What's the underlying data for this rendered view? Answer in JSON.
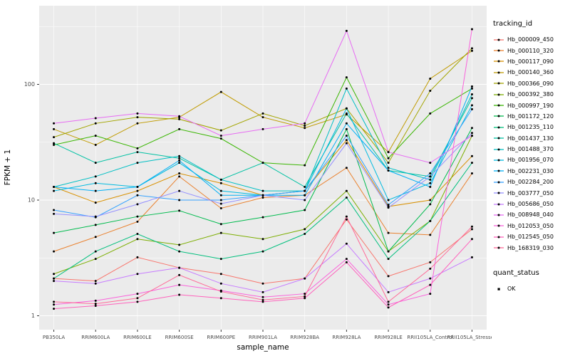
{
  "figure": {
    "background": "#FFFFFF",
    "panel_background": "#EBEBEB",
    "grid_color": "#FFFFFF",
    "tick_text_color": "#4D4D4D",
    "axis_title_color": "#000000",
    "point_color": "#000000"
  },
  "chart_data": {
    "type": "line",
    "title": "",
    "xlabel": "sample_name",
    "ylabel": "FPKM + 1",
    "y_scale": "log10",
    "ylim": [
      1,
      400
    ],
    "yticks": [
      {
        "label": "1",
        "value": 1
      },
      {
        "label": "10",
        "value": 10
      },
      {
        "label": "100",
        "value": 100
      }
    ],
    "grid": true,
    "legend_position": "right",
    "legend_title": "tracking_id",
    "categories": [
      "PB350LA",
      "RRIM600LA",
      "RRIM600LE",
      "RRIM600SE",
      "RRIM600PE",
      "RRIM901LA",
      "RRIM928BA",
      "RRIM928LA",
      "RRIM928LE",
      "RRII105LA_Control",
      "RRII105LA_Stressed"
    ],
    "series": [
      {
        "name": "Hb_000009_450",
        "color": "#F8766D",
        "values": [
          2.1,
          2.0,
          3.2,
          2.6,
          2.3,
          1.9,
          2.1,
          6.8,
          2.2,
          2.9,
          5.6
        ]
      },
      {
        "name": "Hb_000110_320",
        "color": "#EA8331",
        "values": [
          3.6,
          4.8,
          6.5,
          16,
          8.5,
          10.5,
          11,
          19,
          5.2,
          5.0,
          17
        ]
      },
      {
        "name": "Hb_000117_090",
        "color": "#D89000",
        "values": [
          13,
          9.5,
          12,
          17,
          14,
          11,
          12,
          33,
          8.8,
          10,
          24
        ]
      },
      {
        "name": "Hb_000140_360",
        "color": "#C09B00",
        "values": [
          41,
          30,
          46,
          52,
          86,
          52,
          42,
          55,
          26,
          112,
          195
        ]
      },
      {
        "name": "Hb_000366_090",
        "color": "#A3A500",
        "values": [
          35,
          46,
          52,
          50,
          40,
          56,
          44,
          62,
          21,
          88,
          205
        ]
      },
      {
        "name": "Hb_000392_380",
        "color": "#7CAE00",
        "values": [
          2.3,
          3.1,
          4.6,
          4.1,
          5.2,
          4.6,
          5.6,
          12,
          3.6,
          6.6,
          36
        ]
      },
      {
        "name": "Hb_000997_190",
        "color": "#39B600",
        "values": [
          30,
          36,
          28,
          41,
          34,
          21,
          20,
          115,
          23,
          56,
          92
        ]
      },
      {
        "name": "Hb_001172_120",
        "color": "#00BB4E",
        "values": [
          5.2,
          6.1,
          7.2,
          8.1,
          6.2,
          7.1,
          8.2,
          41,
          3.6,
          9.2,
          42
        ]
      },
      {
        "name": "Hb_001235_110",
        "color": "#00BF7D",
        "values": [
          2.1,
          3.6,
          5.1,
          3.6,
          3.1,
          3.6,
          5.1,
          10.5,
          3.1,
          6.6,
          21
        ]
      },
      {
        "name": "Hb_001437_130",
        "color": "#00C1A3",
        "values": [
          31,
          21,
          26,
          23,
          15,
          21,
          13,
          56,
          18,
          16,
          76
        ]
      },
      {
        "name": "Hb_001488_370",
        "color": "#00BFC4",
        "values": [
          13,
          16,
          21,
          24,
          15,
          12,
          12,
          92,
          19,
          15,
          82
        ]
      },
      {
        "name": "Hb_001956_070",
        "color": "#00BAE0",
        "values": [
          12,
          14,
          13,
          21,
          12,
          11,
          12,
          62,
          10,
          14,
          66
        ]
      },
      {
        "name": "Hb_002231_030",
        "color": "#00B0F6",
        "values": [
          13,
          12,
          13,
          22,
          11,
          11,
          11,
          46,
          18,
          13,
          96
        ]
      },
      {
        "name": "Hb_002284_200",
        "color": "#35A2FF",
        "values": [
          8.2,
          7.1,
          11,
          10,
          10,
          11,
          12,
          36,
          9.1,
          17,
          61
        ]
      },
      {
        "name": "Hb_003777_050",
        "color": "#9590FF",
        "values": [
          7.6,
          7.2,
          9.2,
          12,
          9.3,
          11,
          10,
          31,
          8.6,
          16,
          38
        ]
      },
      {
        "name": "Hb_005686_050",
        "color": "#C77CFF",
        "values": [
          2.0,
          1.9,
          2.3,
          2.6,
          1.9,
          1.6,
          2.1,
          4.2,
          1.6,
          2.1,
          3.2
        ]
      },
      {
        "name": "Hb_008948_040",
        "color": "#E76BF3",
        "values": [
          46,
          51,
          56,
          53,
          36,
          41,
          46,
          290,
          26,
          21,
          36
        ]
      },
      {
        "name": "Hb_012053_050",
        "color": "#FA62DB",
        "values": [
          1.25,
          1.35,
          1.55,
          1.85,
          1.65,
          1.45,
          1.55,
          3.1,
          1.25,
          1.55,
          300
        ]
      },
      {
        "name": "Hb_012545_050",
        "color": "#FF62BC",
        "values": [
          1.15,
          1.22,
          1.32,
          1.52,
          1.42,
          1.32,
          1.42,
          2.9,
          1.18,
          1.85,
          4.6
        ]
      },
      {
        "name": "Hb_168319_030",
        "color": "#FF6A98",
        "values": [
          1.32,
          1.27,
          1.42,
          2.25,
          1.62,
          1.37,
          1.47,
          7.2,
          1.32,
          2.55,
          5.9
        ]
      }
    ],
    "quant_legend": {
      "title": "quant_status",
      "items": [
        "OK"
      ]
    }
  }
}
